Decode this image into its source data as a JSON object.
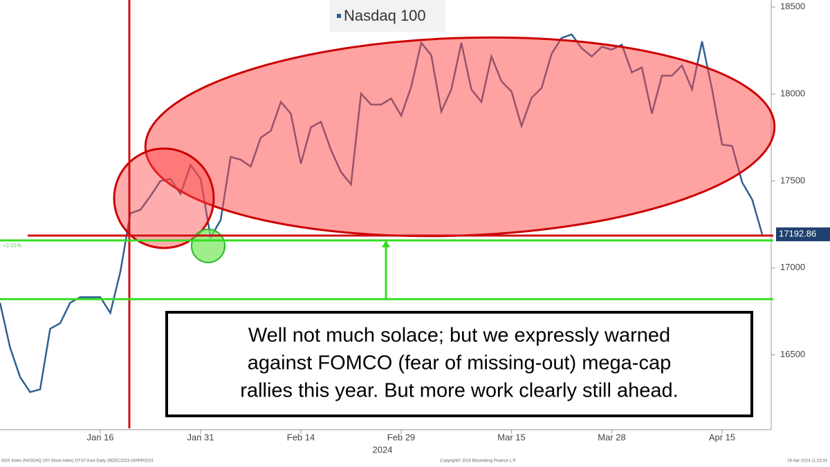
{
  "chart_data": {
    "type": "line",
    "legend": "Nasdaq 100",
    "x_axis_label": "2024",
    "categories": [
      null,
      null,
      null,
      null,
      null,
      null,
      null,
      null,
      null,
      null,
      "Jan 16",
      null,
      null,
      null,
      null,
      null,
      null,
      null,
      null,
      null,
      "Jan 31",
      null,
      null,
      null,
      null,
      null,
      null,
      null,
      null,
      null,
      "Feb 14",
      null,
      null,
      null,
      null,
      null,
      null,
      null,
      null,
      null,
      "Feb 29",
      null,
      null,
      null,
      null,
      null,
      null,
      null,
      null,
      null,
      null,
      "Mar 15",
      null,
      null,
      null,
      null,
      null,
      null,
      null,
      null,
      null,
      "Mar 28",
      null,
      null,
      null,
      null,
      null,
      null,
      null,
      null,
      null,
      null,
      "Apr 15",
      null,
      null,
      null,
      null
    ],
    "series": [
      {
        "name": "Nasdaq 100",
        "color": "#2f5f8f",
        "values": [
          16800,
          16543,
          16373,
          16286,
          16302,
          16650,
          16682,
          16800,
          16832,
          16832,
          16832,
          16741,
          16978,
          17314,
          17334,
          17413,
          17500,
          17512,
          17425,
          17591,
          17512,
          17176,
          17275,
          17638,
          17622,
          17583,
          17749,
          17788,
          17954,
          17887,
          17599,
          17808,
          17840,
          17678,
          17551,
          17480,
          18002,
          17939,
          17939,
          17974,
          17875,
          18041,
          18294,
          18223,
          17899,
          18026,
          18294,
          18026,
          17954,
          18215,
          18073,
          18014,
          17816,
          17978,
          18034,
          18231,
          18322,
          18342,
          18263,
          18215,
          18271,
          18255,
          18283,
          18124,
          18152,
          17887,
          18105,
          18105,
          18164,
          18026,
          18302,
          18026,
          17709,
          17701,
          17492,
          17393,
          17192.86
        ]
      }
    ],
    "ylim": [
      16070,
      18540
    ],
    "yticks": [
      16500,
      17000,
      17500,
      18000,
      18500
    ],
    "side_label": "+2.01%",
    "annotation": [
      "Well not much solace; but we expressly warned",
      "against FOMCO (fear of missing-out) mega-cap",
      "rallies this year. But more work clearly still ahead."
    ],
    "footer_left": "NDX Index (NASDAQ 100 Stock Index) GT10 Govt Daily 29DEC2023-19APR2024",
    "footer_center": "Copyright© 2024 Bloomberg Finance L.P.",
    "footer_right": "19-Apr-2024 11:23:33"
  }
}
